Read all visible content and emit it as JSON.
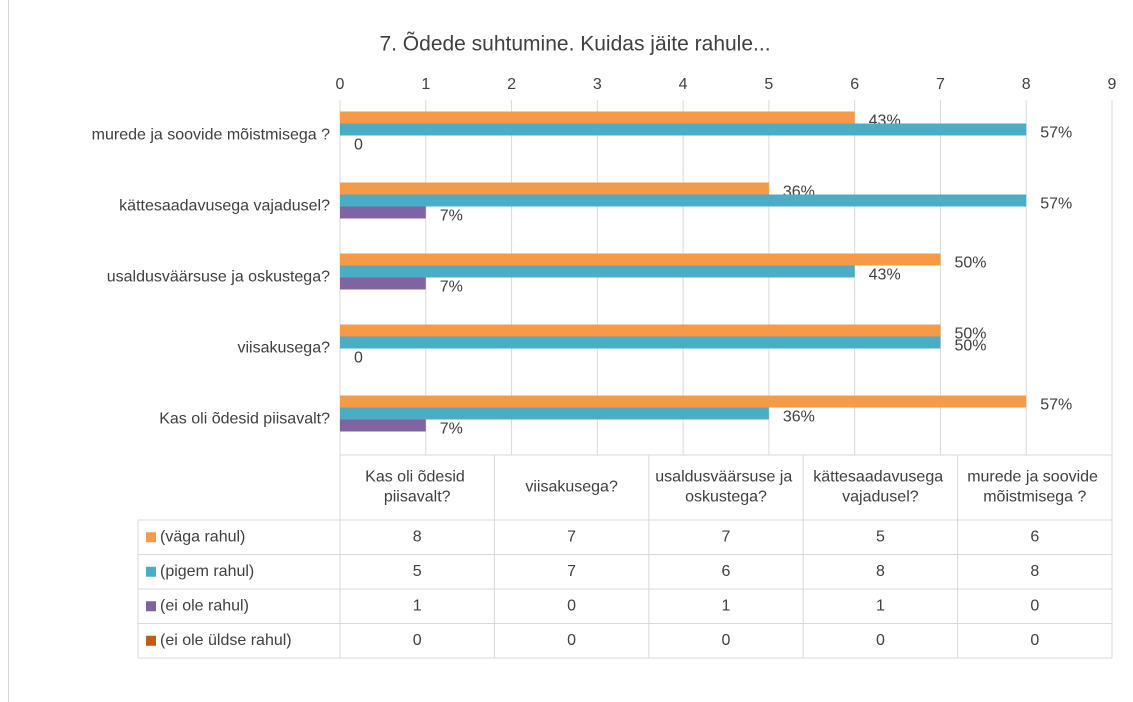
{
  "chart_data": {
    "type": "bar",
    "orientation": "horizontal",
    "title": "7. Õdede suhtumine. Kuidas jäite rahule...",
    "categories": [
      "Kas oli õdesid piisavalt?",
      "viisakusega?",
      "usaldusväärsuse ja oskustega?",
      "kättesaadavusega vajadusel?",
      "murede ja soovide mõistmisega ?"
    ],
    "series": [
      {
        "name": "(väga rahul)",
        "color": "#f59a46",
        "values": [
          8,
          7,
          7,
          5,
          6
        ],
        "data_labels": [
          "57%",
          "50%",
          "50%",
          "36%",
          "43%"
        ]
      },
      {
        "name": "(pigem rahul)",
        "color": "#4bacc6",
        "values": [
          5,
          7,
          6,
          8,
          8
        ],
        "data_labels": [
          "36%",
          "50%",
          "43%",
          "57%",
          "57%"
        ]
      },
      {
        "name": "(ei ole rahul)",
        "color": "#8064a2",
        "values": [
          1,
          0,
          1,
          1,
          0
        ],
        "data_labels": [
          "7%",
          "0",
          "7%",
          "7%",
          "0"
        ]
      },
      {
        "name": "(ei ole üldse rahul)",
        "color": "#c55a11",
        "values": [
          0,
          0,
          0,
          0,
          0
        ]
      }
    ],
    "xlim": [
      0,
      9
    ],
    "xticks": [
      0,
      1,
      2,
      3,
      4,
      5,
      6,
      7,
      8,
      9
    ],
    "grid": true,
    "data_table": true
  }
}
